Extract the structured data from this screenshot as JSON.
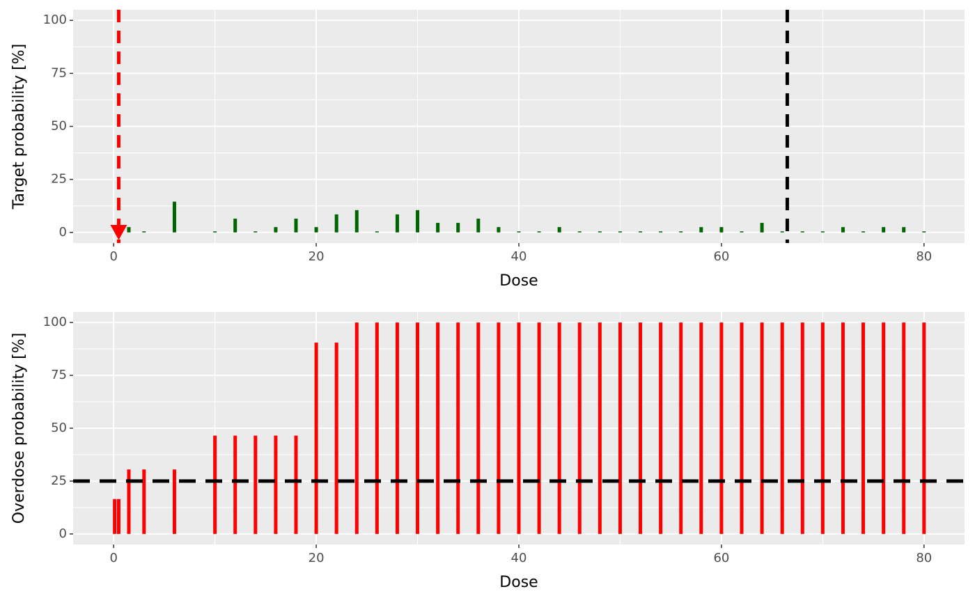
{
  "chart_data": [
    {
      "type": "bar",
      "xlabel": "Dose",
      "ylabel": "Target probability [%]",
      "color": "#006400",
      "x": [
        0.1,
        0.5,
        1.5,
        3,
        6,
        10,
        12,
        14,
        16,
        18,
        20,
        22,
        24,
        26,
        28,
        30,
        32,
        34,
        36,
        38,
        40,
        42,
        44,
        46,
        48,
        50,
        52,
        54,
        56,
        58,
        60,
        62,
        64,
        66,
        68,
        70,
        72,
        74,
        76,
        78,
        80
      ],
      "values": [
        0,
        0,
        2.5,
        0.5,
        14.5,
        0.5,
        6.5,
        0.5,
        2.5,
        6.5,
        2.5,
        8.5,
        10.5,
        0.5,
        8.5,
        10.5,
        4.5,
        4.5,
        6.5,
        2.5,
        0.5,
        0.5,
        2.5,
        0.5,
        0.5,
        0.5,
        0.5,
        0.5,
        0.5,
        2.5,
        2.5,
        0.5,
        4.5,
        0.5,
        0.5,
        0.5,
        2.5,
        0.5,
        2.5,
        2.5,
        0.5
      ],
      "xlim": [
        -4,
        84
      ],
      "ylim": [
        -5,
        105
      ],
      "xticks": [
        0,
        20,
        40,
        60,
        80
      ],
      "yticks": [
        0,
        25,
        50,
        75,
        100
      ],
      "grid": true,
      "vlines": [
        {
          "x": 0.5,
          "color": "#ff0000"
        },
        {
          "x": 66.5,
          "color": "#000000"
        }
      ],
      "points": [
        {
          "x": 0.5,
          "y": 0,
          "color": "#ff0000",
          "shape": "triangle-down"
        }
      ]
    },
    {
      "type": "bar",
      "xlabel": "Dose",
      "ylabel": "Overdose probability [%]",
      "color": "#ff0000",
      "x": [
        0.1,
        0.5,
        1.5,
        3,
        6,
        10,
        12,
        14,
        16,
        18,
        20,
        22,
        24,
        26,
        28,
        30,
        32,
        34,
        36,
        38,
        40,
        42,
        44,
        46,
        48,
        50,
        52,
        54,
        56,
        58,
        60,
        62,
        64,
        66,
        68,
        70,
        72,
        74,
        76,
        78,
        80
      ],
      "values": [
        16.5,
        16.5,
        30.5,
        30.5,
        30.5,
        46.5,
        46.5,
        46.5,
        46.5,
        46.5,
        90.5,
        90.5,
        100,
        100,
        100,
        100,
        100,
        100,
        100,
        100,
        100,
        100,
        100,
        100,
        100,
        100,
        100,
        100,
        100,
        100,
        100,
        100,
        100,
        100,
        100,
        100,
        100,
        100,
        100,
        100,
        100
      ],
      "xlim": [
        -4,
        84
      ],
      "ylim": [
        -5,
        105
      ],
      "xticks": [
        0,
        20,
        40,
        60,
        80
      ],
      "yticks": [
        0,
        25,
        50,
        75,
        100
      ],
      "grid": true,
      "hlines": [
        {
          "y": 25,
          "color": "#000000"
        }
      ]
    }
  ]
}
